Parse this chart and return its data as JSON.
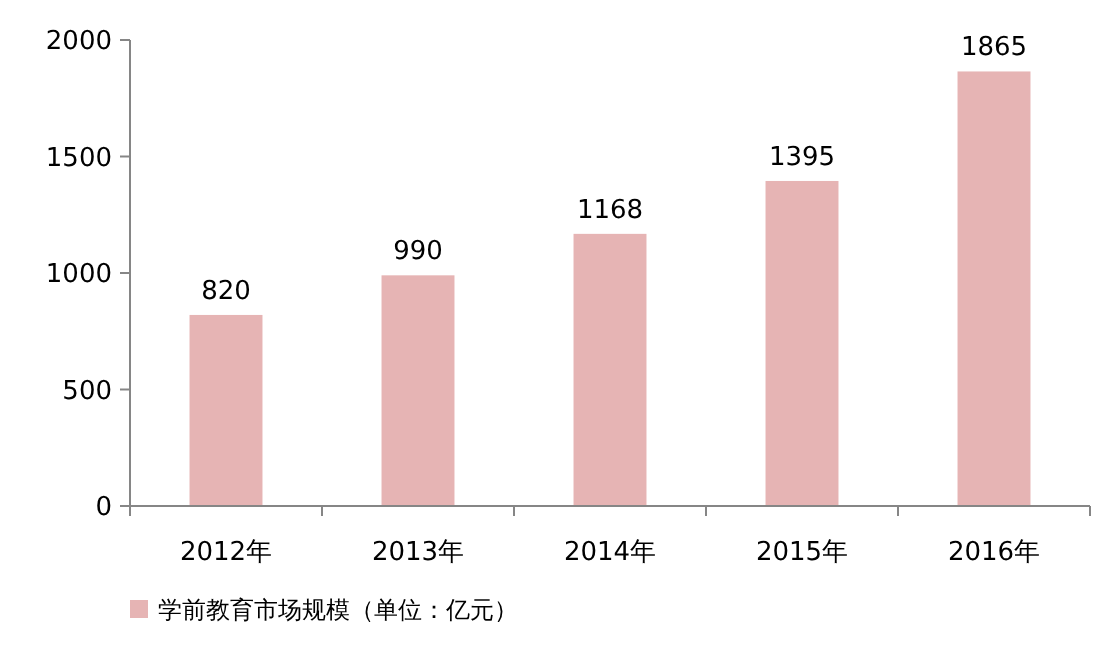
{
  "chart_data": {
    "type": "bar",
    "categories": [
      "2012年",
      "2013年",
      "2014年",
      "2015年",
      "2016年"
    ],
    "series": [
      {
        "name": "学前教育市场规模（单位：亿元）",
        "color": "#e6b4b4",
        "values": [
          820,
          990,
          1168,
          1395,
          1865
        ]
      }
    ],
    "ylim": [
      0,
      2000
    ],
    "yticks": [
      0,
      500,
      1000,
      1500,
      2000
    ],
    "data_labels": true,
    "grid": false,
    "legend": "bottom left"
  }
}
